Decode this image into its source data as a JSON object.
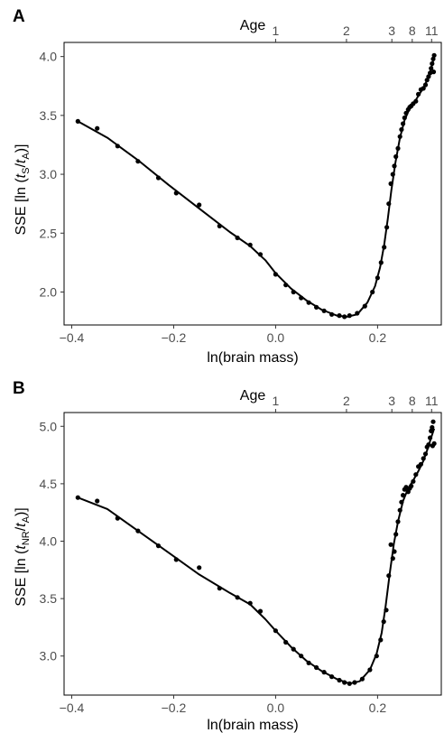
{
  "figure": {
    "panels": [
      {
        "panel_label": "A",
        "xlabel": "ln(brain mass)",
        "ylabel_parts": [
          "SSE [ln (",
          "t",
          "S",
          "/",
          "t",
          "A",
          ")]"
        ],
        "top_axis_label": "Age",
        "top_ticks": [
          {
            "label": "1",
            "x": 0.0
          },
          {
            "label": "2",
            "x": 0.139
          },
          {
            "label": "3",
            "x": 0.228
          },
          {
            "label": "8",
            "x": 0.268
          },
          {
            "label": "11",
            "x": 0.306
          }
        ],
        "x_ticks": [
          {
            "value": -0.4,
            "label": "−0.4"
          },
          {
            "value": -0.2,
            "label": "−0.2"
          },
          {
            "value": 0.0,
            "label": "0.0"
          },
          {
            "value": 0.2,
            "label": "0.2"
          }
        ],
        "y_ticks": [
          {
            "value": 2.0,
            "label": "2.0"
          },
          {
            "value": 2.5,
            "label": "2.5"
          },
          {
            "value": 3.0,
            "label": "3.0"
          },
          {
            "value": 3.5,
            "label": "3.5"
          },
          {
            "value": 4.0,
            "label": "4.0"
          }
        ]
      },
      {
        "panel_label": "B",
        "xlabel": "ln(brain mass)",
        "ylabel_parts": [
          "SSE [ln (",
          "t",
          "NR",
          "/",
          "t",
          "A",
          ")]"
        ],
        "top_axis_label": "Age",
        "top_ticks": [
          {
            "label": "1",
            "x": 0.0
          },
          {
            "label": "2",
            "x": 0.139
          },
          {
            "label": "3",
            "x": 0.228
          },
          {
            "label": "8",
            "x": 0.268
          },
          {
            "label": "11",
            "x": 0.306
          }
        ],
        "x_ticks": [
          {
            "value": -0.4,
            "label": "−0.4"
          },
          {
            "value": -0.2,
            "label": "−0.2"
          },
          {
            "value": 0.0,
            "label": "0.0"
          },
          {
            "value": 0.2,
            "label": "0.2"
          }
        ],
        "y_ticks": [
          {
            "value": 3.0,
            "label": "3.0"
          },
          {
            "value": 3.5,
            "label": "3.5"
          },
          {
            "value": 4.0,
            "label": "4.0"
          },
          {
            "value": 4.5,
            "label": "4.5"
          },
          {
            "value": 5.0,
            "label": "5.0"
          }
        ]
      }
    ]
  },
  "chart_data": [
    {
      "type": "scatter",
      "title": "",
      "xlabel": "ln(brain mass)",
      "ylabel": "SSE [ln (tS/tA)]",
      "top_axis": {
        "label": "Age",
        "ticks": [
          "1",
          "2",
          "3",
          "8",
          "11"
        ],
        "tick_x": [
          0.0,
          0.139,
          0.228,
          0.268,
          0.306
        ]
      },
      "xlim": [
        -0.415,
        0.325
      ],
      "ylim": [
        1.72,
        4.12
      ],
      "grid": false,
      "points": [
        [
          -0.388,
          3.45
        ],
        [
          -0.35,
          3.39
        ],
        [
          -0.31,
          3.24
        ],
        [
          -0.27,
          3.11
        ],
        [
          -0.23,
          2.97
        ],
        [
          -0.195,
          2.84
        ],
        [
          -0.15,
          2.74
        ],
        [
          -0.11,
          2.56
        ],
        [
          -0.075,
          2.46
        ],
        [
          -0.05,
          2.4
        ],
        [
          -0.03,
          2.32
        ],
        [
          0.0,
          2.15
        ],
        [
          0.02,
          2.06
        ],
        [
          0.035,
          2.0
        ],
        [
          0.05,
          1.95
        ],
        [
          0.065,
          1.91
        ],
        [
          0.08,
          1.87
        ],
        [
          0.095,
          1.84
        ],
        [
          0.11,
          1.81
        ],
        [
          0.125,
          1.8
        ],
        [
          0.135,
          1.79
        ],
        [
          0.145,
          1.8
        ],
        [
          0.16,
          1.82
        ],
        [
          0.175,
          1.88
        ],
        [
          0.19,
          2.0
        ],
        [
          0.2,
          2.12
        ],
        [
          0.207,
          2.25
        ],
        [
          0.213,
          2.38
        ],
        [
          0.218,
          2.55
        ],
        [
          0.222,
          2.75
        ],
        [
          0.226,
          2.92
        ],
        [
          0.23,
          3.0
        ],
        [
          0.233,
          3.07
        ],
        [
          0.236,
          3.15
        ],
        [
          0.24,
          3.22
        ],
        [
          0.244,
          3.32
        ],
        [
          0.247,
          3.38
        ],
        [
          0.25,
          3.43
        ],
        [
          0.253,
          3.48
        ],
        [
          0.256,
          3.52
        ],
        [
          0.26,
          3.55
        ],
        [
          0.263,
          3.57
        ],
        [
          0.266,
          3.58
        ],
        [
          0.27,
          3.6
        ],
        [
          0.275,
          3.62
        ],
        [
          0.28,
          3.68
        ],
        [
          0.285,
          3.72
        ],
        [
          0.29,
          3.73
        ],
        [
          0.294,
          3.76
        ],
        [
          0.297,
          3.8
        ],
        [
          0.3,
          3.83
        ],
        [
          0.303,
          3.86
        ],
        [
          0.305,
          3.9
        ],
        [
          0.307,
          3.94
        ],
        [
          0.309,
          3.98
        ],
        [
          0.311,
          4.01
        ],
        [
          0.31,
          3.87
        ]
      ],
      "curve": [
        [
          -0.388,
          3.45
        ],
        [
          -0.33,
          3.31
        ],
        [
          -0.27,
          3.12
        ],
        [
          -0.21,
          2.91
        ],
        [
          -0.15,
          2.71
        ],
        [
          -0.09,
          2.51
        ],
        [
          -0.05,
          2.39
        ],
        [
          -0.02,
          2.27
        ],
        [
          0.0,
          2.16
        ],
        [
          0.03,
          2.03
        ],
        [
          0.06,
          1.93
        ],
        [
          0.09,
          1.85
        ],
        [
          0.12,
          1.8
        ],
        [
          0.14,
          1.79
        ],
        [
          0.16,
          1.81
        ],
        [
          0.18,
          1.91
        ],
        [
          0.195,
          2.05
        ],
        [
          0.205,
          2.21
        ],
        [
          0.213,
          2.4
        ],
        [
          0.22,
          2.62
        ],
        [
          0.227,
          2.86
        ],
        [
          0.235,
          3.1
        ],
        [
          0.244,
          3.31
        ],
        [
          0.253,
          3.46
        ],
        [
          0.262,
          3.55
        ],
        [
          0.272,
          3.61
        ],
        [
          0.282,
          3.68
        ],
        [
          0.292,
          3.75
        ],
        [
          0.3,
          3.83
        ],
        [
          0.306,
          3.91
        ],
        [
          0.311,
          4.0
        ]
      ]
    },
    {
      "type": "scatter",
      "title": "",
      "xlabel": "ln(brain mass)",
      "ylabel": "SSE [ln (tNR/tA)]",
      "top_axis": {
        "label": "Age",
        "ticks": [
          "1",
          "2",
          "3",
          "8",
          "11"
        ],
        "tick_x": [
          0.0,
          0.139,
          0.228,
          0.268,
          0.306
        ]
      },
      "xlim": [
        -0.415,
        0.325
      ],
      "ylim": [
        2.66,
        5.12
      ],
      "grid": false,
      "points": [
        [
          -0.388,
          4.38
        ],
        [
          -0.35,
          4.35
        ],
        [
          -0.31,
          4.2
        ],
        [
          -0.27,
          4.09
        ],
        [
          -0.23,
          3.96
        ],
        [
          -0.195,
          3.84
        ],
        [
          -0.15,
          3.77
        ],
        [
          -0.11,
          3.59
        ],
        [
          -0.075,
          3.51
        ],
        [
          -0.05,
          3.46
        ],
        [
          -0.03,
          3.39
        ],
        [
          0.0,
          3.22
        ],
        [
          0.02,
          3.12
        ],
        [
          0.035,
          3.06
        ],
        [
          0.05,
          3.0
        ],
        [
          0.065,
          2.94
        ],
        [
          0.08,
          2.9
        ],
        [
          0.095,
          2.86
        ],
        [
          0.11,
          2.82
        ],
        [
          0.125,
          2.79
        ],
        [
          0.135,
          2.77
        ],
        [
          0.145,
          2.76
        ],
        [
          0.155,
          2.77
        ],
        [
          0.17,
          2.8
        ],
        [
          0.185,
          2.88
        ],
        [
          0.198,
          3.0
        ],
        [
          0.206,
          3.14
        ],
        [
          0.212,
          3.3
        ],
        [
          0.217,
          3.4
        ],
        [
          0.222,
          3.7
        ],
        [
          0.226,
          3.97
        ],
        [
          0.23,
          3.85
        ],
        [
          0.233,
          3.91
        ],
        [
          0.236,
          4.06
        ],
        [
          0.24,
          4.17
        ],
        [
          0.244,
          4.27
        ],
        [
          0.247,
          4.34
        ],
        [
          0.25,
          4.4
        ],
        [
          0.253,
          4.45
        ],
        [
          0.256,
          4.47
        ],
        [
          0.26,
          4.43
        ],
        [
          0.263,
          4.46
        ],
        [
          0.266,
          4.48
        ],
        [
          0.27,
          4.52
        ],
        [
          0.275,
          4.58
        ],
        [
          0.28,
          4.65
        ],
        [
          0.285,
          4.67
        ],
        [
          0.29,
          4.72
        ],
        [
          0.294,
          4.76
        ],
        [
          0.297,
          4.82
        ],
        [
          0.3,
          4.84
        ],
        [
          0.303,
          4.9
        ],
        [
          0.305,
          4.96
        ],
        [
          0.307,
          4.99
        ],
        [
          0.309,
          5.04
        ],
        [
          0.311,
          4.85
        ],
        [
          0.308,
          4.83
        ]
      ],
      "curve": [
        [
          -0.388,
          4.38
        ],
        [
          -0.33,
          4.28
        ],
        [
          -0.27,
          4.09
        ],
        [
          -0.21,
          3.9
        ],
        [
          -0.15,
          3.71
        ],
        [
          -0.09,
          3.55
        ],
        [
          -0.05,
          3.45
        ],
        [
          -0.02,
          3.32
        ],
        [
          0.0,
          3.22
        ],
        [
          0.03,
          3.08
        ],
        [
          0.06,
          2.96
        ],
        [
          0.09,
          2.87
        ],
        [
          0.12,
          2.8
        ],
        [
          0.145,
          2.76
        ],
        [
          0.165,
          2.78
        ],
        [
          0.185,
          2.88
        ],
        [
          0.198,
          3.02
        ],
        [
          0.208,
          3.2
        ],
        [
          0.216,
          3.44
        ],
        [
          0.224,
          3.72
        ],
        [
          0.232,
          3.98
        ],
        [
          0.24,
          4.17
        ],
        [
          0.25,
          4.35
        ],
        [
          0.26,
          4.46
        ],
        [
          0.27,
          4.53
        ],
        [
          0.28,
          4.61
        ],
        [
          0.29,
          4.7
        ],
        [
          0.298,
          4.8
        ],
        [
          0.305,
          4.9
        ],
        [
          0.311,
          4.98
        ]
      ]
    }
  ]
}
